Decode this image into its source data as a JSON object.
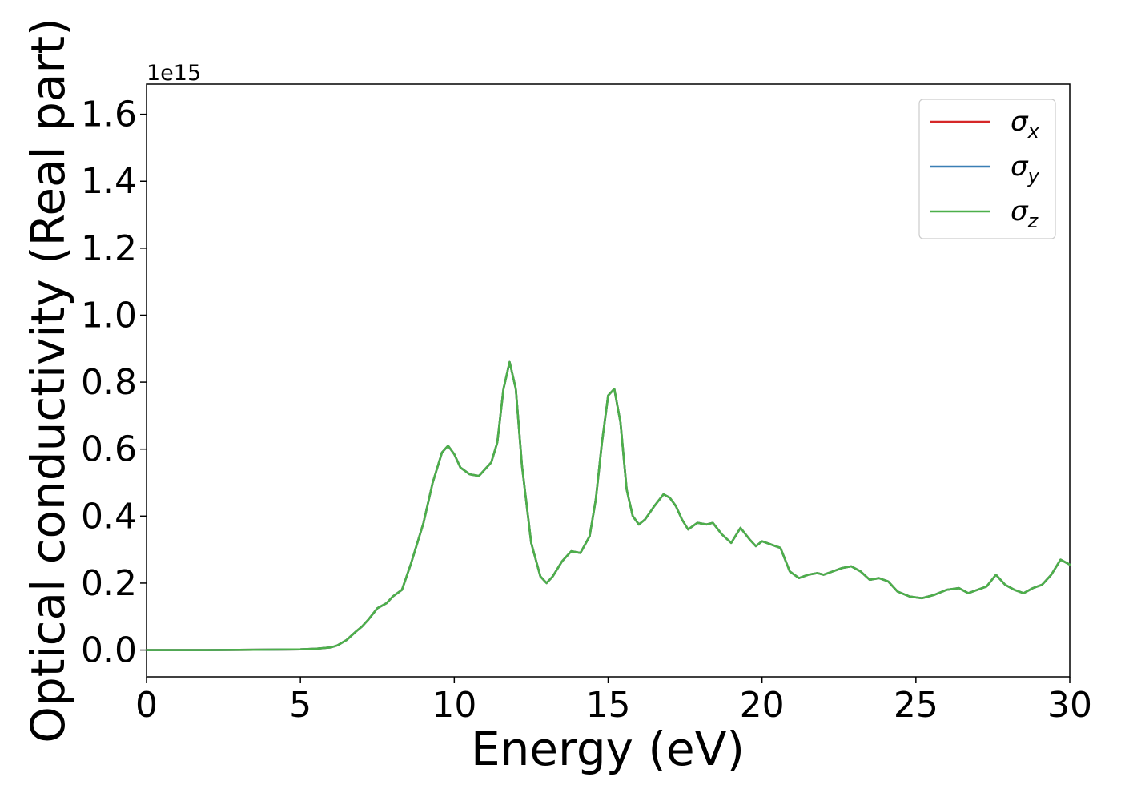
{
  "chart_data": {
    "type": "line",
    "title": "",
    "xlabel": "Energy (eV)",
    "ylabel": "Optical conductivity (Real part)",
    "y_offset_label": "1e15",
    "xlim": [
      0,
      30
    ],
    "ylim": [
      -0.08,
      1.69
    ],
    "xticks": [
      0,
      5,
      10,
      15,
      20,
      25,
      30
    ],
    "xtick_labels": [
      "0",
      "5",
      "10",
      "15",
      "20",
      "25",
      "30"
    ],
    "yticks": [
      0.0,
      0.2,
      0.4,
      0.6,
      0.8,
      1.0,
      1.2,
      1.4,
      1.6
    ],
    "ytick_labels": [
      "0.0",
      "0.2",
      "0.4",
      "0.6",
      "0.8",
      "1.0",
      "1.2",
      "1.4",
      "1.6"
    ],
    "grid": false,
    "legend_position": "top-right",
    "x": [
      0,
      2,
      4,
      5,
      5.5,
      6,
      6.2,
      6.5,
      6.8,
      7.0,
      7.2,
      7.5,
      7.8,
      8.0,
      8.3,
      8.6,
      9.0,
      9.3,
      9.6,
      9.8,
      10.0,
      10.2,
      10.5,
      10.8,
      11.0,
      11.2,
      11.4,
      11.6,
      11.8,
      12.0,
      12.2,
      12.5,
      12.8,
      13.0,
      13.2,
      13.5,
      13.8,
      14.1,
      14.4,
      14.6,
      14.8,
      15.0,
      15.2,
      15.4,
      15.6,
      15.8,
      16.0,
      16.2,
      16.5,
      16.8,
      17.0,
      17.2,
      17.4,
      17.6,
      17.9,
      18.2,
      18.4,
      18.7,
      19.0,
      19.3,
      19.6,
      19.8,
      20.0,
      20.3,
      20.6,
      20.9,
      21.2,
      21.5,
      21.8,
      22.0,
      22.3,
      22.6,
      22.9,
      23.2,
      23.5,
      23.8,
      24.1,
      24.4,
      24.8,
      25.2,
      25.6,
      26.0,
      26.4,
      26.7,
      27.0,
      27.3,
      27.6,
      27.9,
      28.2,
      28.5,
      28.8,
      29.1,
      29.4,
      29.7,
      30.0
    ],
    "series": [
      {
        "name_base": "σ",
        "name_sub": "x",
        "color": "#d62728",
        "values": [
          0.0,
          0.0,
          0.001,
          0.002,
          0.004,
          0.008,
          0.014,
          0.03,
          0.055,
          0.07,
          0.09,
          0.125,
          0.14,
          0.16,
          0.18,
          0.26,
          0.38,
          0.5,
          0.59,
          0.61,
          0.585,
          0.545,
          0.525,
          0.52,
          0.54,
          0.56,
          0.62,
          0.78,
          0.86,
          0.78,
          0.55,
          0.32,
          0.22,
          0.2,
          0.22,
          0.265,
          0.295,
          0.29,
          0.34,
          0.45,
          0.62,
          0.76,
          0.78,
          0.68,
          0.48,
          0.4,
          0.375,
          0.39,
          0.43,
          0.465,
          0.455,
          0.43,
          0.39,
          0.36,
          0.38,
          0.375,
          0.38,
          0.345,
          0.32,
          0.365,
          0.33,
          0.31,
          0.325,
          0.315,
          0.305,
          0.235,
          0.215,
          0.225,
          0.23,
          0.225,
          0.235,
          0.245,
          0.25,
          0.235,
          0.21,
          0.215,
          0.205,
          0.175,
          0.16,
          0.155,
          0.165,
          0.18,
          0.185,
          0.17,
          0.18,
          0.19,
          0.225,
          0.195,
          0.18,
          0.17,
          0.185,
          0.195,
          0.225,
          0.27,
          0.255
        ]
      },
      {
        "name_base": "σ",
        "name_sub": "y",
        "color": "#3a7fb5",
        "values": [
          0.0,
          0.0,
          0.001,
          0.002,
          0.004,
          0.008,
          0.014,
          0.03,
          0.055,
          0.07,
          0.09,
          0.125,
          0.14,
          0.16,
          0.18,
          0.26,
          0.38,
          0.5,
          0.59,
          0.61,
          0.585,
          0.545,
          0.525,
          0.52,
          0.54,
          0.56,
          0.62,
          0.78,
          0.86,
          0.78,
          0.55,
          0.32,
          0.22,
          0.2,
          0.22,
          0.265,
          0.295,
          0.29,
          0.34,
          0.45,
          0.62,
          0.76,
          0.78,
          0.68,
          0.48,
          0.4,
          0.375,
          0.39,
          0.43,
          0.465,
          0.455,
          0.43,
          0.39,
          0.36,
          0.38,
          0.375,
          0.38,
          0.345,
          0.32,
          0.365,
          0.33,
          0.31,
          0.325,
          0.315,
          0.305,
          0.235,
          0.215,
          0.225,
          0.23,
          0.225,
          0.235,
          0.245,
          0.25,
          0.235,
          0.21,
          0.215,
          0.205,
          0.175,
          0.16,
          0.155,
          0.165,
          0.18,
          0.185,
          0.17,
          0.18,
          0.19,
          0.225,
          0.195,
          0.18,
          0.17,
          0.185,
          0.195,
          0.225,
          0.27,
          0.255
        ]
      },
      {
        "name_base": "σ",
        "name_sub": "z",
        "color": "#4daf4a",
        "values": [
          0.0,
          0.0,
          0.001,
          0.002,
          0.004,
          0.008,
          0.014,
          0.03,
          0.055,
          0.07,
          0.09,
          0.125,
          0.14,
          0.16,
          0.18,
          0.26,
          0.38,
          0.5,
          0.59,
          0.61,
          0.585,
          0.545,
          0.525,
          0.52,
          0.54,
          0.56,
          0.62,
          0.78,
          0.86,
          0.78,
          0.55,
          0.32,
          0.22,
          0.2,
          0.22,
          0.265,
          0.295,
          0.29,
          0.34,
          0.45,
          0.62,
          0.76,
          0.78,
          0.68,
          0.48,
          0.4,
          0.375,
          0.39,
          0.43,
          0.465,
          0.455,
          0.43,
          0.39,
          0.36,
          0.38,
          0.375,
          0.38,
          0.345,
          0.32,
          0.365,
          0.33,
          0.31,
          0.325,
          0.315,
          0.305,
          0.235,
          0.215,
          0.225,
          0.23,
          0.225,
          0.235,
          0.245,
          0.25,
          0.235,
          0.21,
          0.215,
          0.205,
          0.175,
          0.16,
          0.155,
          0.165,
          0.18,
          0.185,
          0.17,
          0.18,
          0.19,
          0.225,
          0.195,
          0.18,
          0.17,
          0.185,
          0.195,
          0.225,
          0.27,
          0.255
        ]
      }
    ]
  }
}
